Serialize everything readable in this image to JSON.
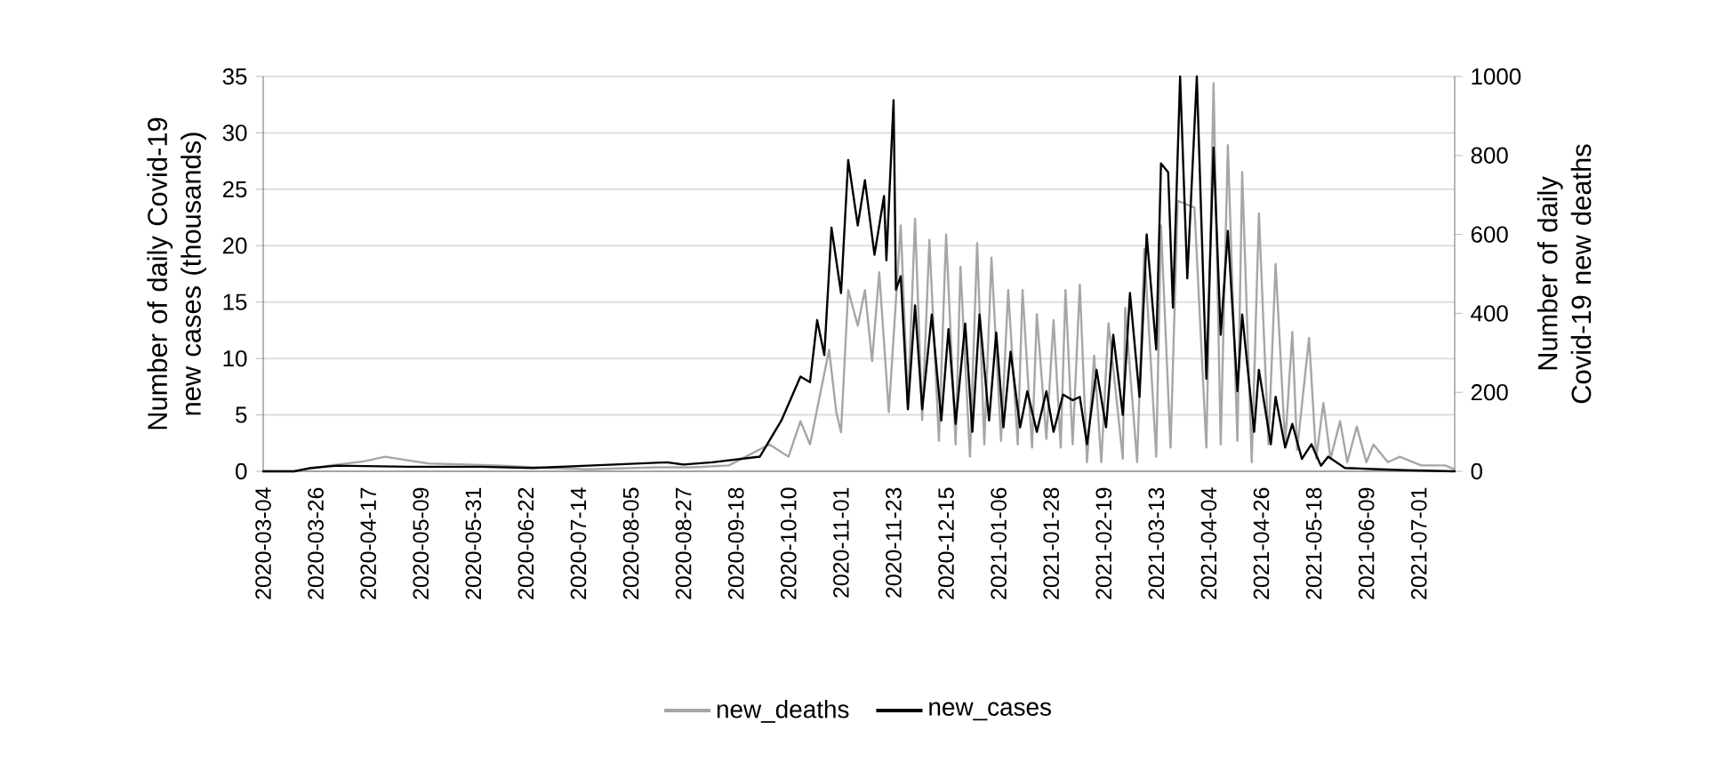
{
  "chart_data": {
    "type": "line",
    "ylabel": "Number of daily Covid-19 new cases (thousands)",
    "y2label": "Number of daily Covid-19 new deaths",
    "xlim": [
      "2020-03-04",
      "2021-07-16"
    ],
    "xticks": [
      "2020-03-04",
      "2020-03-26",
      "2020-04-17",
      "2020-05-09",
      "2020-05-31",
      "2020-06-22",
      "2020-07-14",
      "2020-08-05",
      "2020-08-27",
      "2020-09-18",
      "2020-10-10",
      "2020-11-01",
      "2020-11-23",
      "2020-12-15",
      "2021-01-06",
      "2021-01-28",
      "2021-02-19",
      "2021-03-13",
      "2021-04-04",
      "2021-04-26",
      "2021-05-18",
      "2021-06-09",
      "2021-07-01"
    ],
    "ylim": [
      0,
      35
    ],
    "yticks": [
      0,
      5,
      10,
      15,
      20,
      25,
      30,
      35
    ],
    "y2lim": [
      0,
      1000
    ],
    "y2ticks": [
      0,
      200,
      400,
      600,
      800,
      1000
    ],
    "grid": "y",
    "legend": "bottom",
    "series": [
      {
        "name": "new_deaths",
        "color": "#a6a6a6",
        "axis": "y2",
        "x": [
          "2020-03-04",
          "2020-03-17",
          "2020-04-01",
          "2020-04-15",
          "2020-04-24",
          "2020-05-12",
          "2020-06-10",
          "2020-06-25",
          "2020-07-18",
          "2020-08-16",
          "2020-08-31",
          "2020-09-15",
          "2020-10-02",
          "2020-10-10",
          "2020-10-15",
          "2020-10-19",
          "2020-10-24",
          "2020-10-27",
          "2020-10-30",
          "2020-11-01",
          "2020-11-04",
          "2020-11-08",
          "2020-11-11",
          "2020-11-14",
          "2020-11-17",
          "2020-11-21",
          "2020-11-26",
          "2020-11-29",
          "2020-12-02",
          "2020-12-05",
          "2020-12-08",
          "2020-12-12",
          "2020-12-15",
          "2020-12-19",
          "2020-12-21",
          "2020-12-25",
          "2020-12-28",
          "2020-12-31",
          "2021-01-03",
          "2021-01-07",
          "2021-01-10",
          "2021-01-14",
          "2021-01-16",
          "2021-01-20",
          "2021-01-22",
          "2021-01-26",
          "2021-01-29",
          "2021-02-01",
          "2021-02-03",
          "2021-02-06",
          "2021-02-09",
          "2021-02-12",
          "2021-02-15",
          "2021-02-18",
          "2021-02-21",
          "2021-02-27",
          "2021-02-28",
          "2021-03-05",
          "2021-03-08",
          "2021-03-13",
          "2021-03-15",
          "2021-03-19",
          "2021-03-22",
          "2021-03-29",
          "2021-04-03",
          "2021-04-06",
          "2021-04-09",
          "2021-04-12",
          "2021-04-16",
          "2021-04-18",
          "2021-04-22",
          "2021-04-25",
          "2021-04-29",
          "2021-05-02",
          "2021-05-06",
          "2021-05-09",
          "2021-05-11",
          "2021-05-16",
          "2021-05-19",
          "2021-05-22",
          "2021-05-25",
          "2021-05-29",
          "2021-06-01",
          "2021-06-05",
          "2021-06-09",
          "2021-06-12",
          "2021-06-18",
          "2021-06-23",
          "2021-07-02",
          "2021-07-12",
          "2021-07-16"
        ],
        "values": [
          0,
          0,
          15,
          25,
          37,
          20,
          15,
          10,
          5,
          10,
          10,
          15,
          68,
          37,
          127,
          68,
          218,
          308,
          150,
          99,
          459,
          369,
          459,
          279,
          504,
          150,
          623,
          167,
          640,
          130,
          586,
          77,
          600,
          68,
          518,
          37,
          578,
          68,
          541,
          77,
          459,
          68,
          459,
          60,
          398,
          82,
          383,
          60,
          459,
          68,
          473,
          23,
          293,
          23,
          375,
          32,
          414,
          23,
          563,
          37,
          623,
          60,
          685,
          668,
          60,
          983,
          68,
          826,
          77,
          758,
          23,
          653,
          68,
          525,
          68,
          353,
          54,
          338,
          32,
          173,
          32,
          127,
          23,
          113,
          23,
          68,
          23,
          37,
          15,
          15,
          5
        ]
      },
      {
        "name": "new_cases",
        "color": "#000000",
        "x": [
          "2020-03-04",
          "2020-03-17",
          "2020-03-24",
          "2020-04-04",
          "2020-05-04",
          "2020-06-03",
          "2020-06-25",
          "2020-07-18",
          "2020-08-09",
          "2020-08-20",
          "2020-08-27",
          "2020-09-08",
          "2020-09-28",
          "2020-10-07",
          "2020-10-15",
          "2020-10-19",
          "2020-10-22",
          "2020-10-25",
          "2020-10-28",
          "2020-11-01",
          "2020-11-04",
          "2020-11-08",
          "2020-11-11",
          "2020-11-15",
          "2020-11-19",
          "2020-11-20",
          "2020-11-23",
          "2020-11-24",
          "2020-11-26",
          "2020-11-29",
          "2020-12-02",
          "2020-12-05",
          "2020-12-09",
          "2020-12-13",
          "2020-12-16",
          "2020-12-19",
          "2020-12-23",
          "2020-12-26",
          "2020-12-29",
          "2021-01-02",
          "2021-01-05",
          "2021-01-08",
          "2021-01-11",
          "2021-01-15",
          "2021-01-18",
          "2021-01-22",
          "2021-01-26",
          "2021-01-29",
          "2021-02-02",
          "2021-02-06",
          "2021-02-09",
          "2021-02-12",
          "2021-02-16",
          "2021-02-20",
          "2021-02-23",
          "2021-02-27",
          "2021-03-02",
          "2021-03-06",
          "2021-03-09",
          "2021-03-13",
          "2021-03-15",
          "2021-03-18",
          "2021-03-20",
          "2021-03-23",
          "2021-03-26",
          "2021-03-30",
          "2021-04-03",
          "2021-04-06",
          "2021-04-09",
          "2021-04-12",
          "2021-04-16",
          "2021-04-18",
          "2021-04-23",
          "2021-04-25",
          "2021-04-30",
          "2021-05-02",
          "2021-05-06",
          "2021-05-09",
          "2021-05-13",
          "2021-05-17",
          "2021-05-21",
          "2021-05-24",
          "2021-05-31",
          "2021-06-12",
          "2021-06-25",
          "2021-07-16"
        ],
        "values": [
          0,
          0,
          0.3,
          0.5,
          0.4,
          0.4,
          0.3,
          0.5,
          0.7,
          0.8,
          0.6,
          0.8,
          1.3,
          4.5,
          8.4,
          7.9,
          13.4,
          10.3,
          21.6,
          15.8,
          27.6,
          21.8,
          25.8,
          19.2,
          24.4,
          18.7,
          32.9,
          16.1,
          17.3,
          5.5,
          14.7,
          5.5,
          13.9,
          4.5,
          12.6,
          4.2,
          13.1,
          3.5,
          13.9,
          4.5,
          12.3,
          3.9,
          10.6,
          3.9,
          7.1,
          3.5,
          7.1,
          3.5,
          6.8,
          6.3,
          6.6,
          2.4,
          9.0,
          3.9,
          12.1,
          5.0,
          15.8,
          6.6,
          21.0,
          10.8,
          27.3,
          26.5,
          14.5,
          35.0,
          17.1,
          35.0,
          8.2,
          28.7,
          12.1,
          21.3,
          7.1,
          13.9,
          3.5,
          9.0,
          2.4,
          6.6,
          2.1,
          4.2,
          1.1,
          2.4,
          0.5,
          1.3,
          0.3,
          0.2,
          0.1,
          0
        ]
      }
    ]
  }
}
